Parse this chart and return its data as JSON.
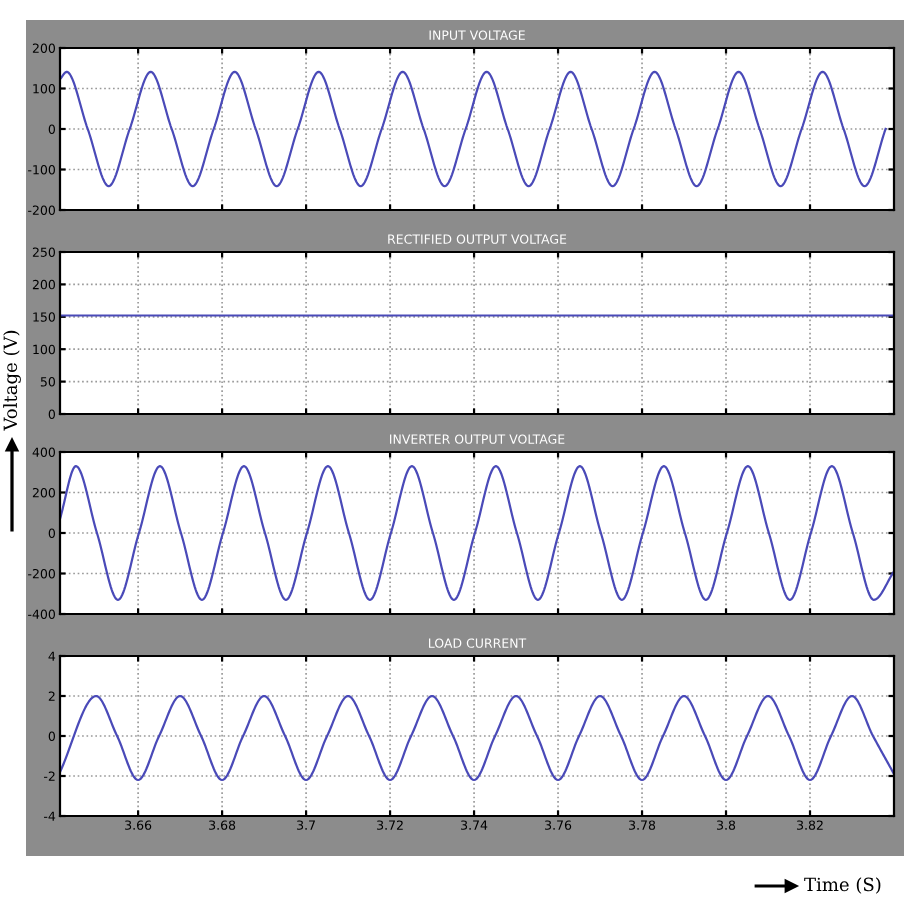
{
  "chart_data": [
    {
      "type": "line",
      "title": "INPUT VOLTAGE",
      "xlim": [
        3.6414,
        3.84
      ],
      "xticks": [
        3.66,
        3.68,
        3.7,
        3.72,
        3.74,
        3.76,
        3.78,
        3.8,
        3.82
      ],
      "ylim": [
        -200,
        200
      ],
      "yticks": [
        -200,
        -100,
        0,
        100,
        200
      ],
      "grid": true,
      "tick_labels": "y",
      "series": [
        {
          "color": "#4a4ab8",
          "x": [
            3.6414,
            3.643,
            3.648,
            3.653,
            3.658,
            3.663,
            3.668,
            3.673,
            3.678,
            3.683,
            3.688,
            3.693,
            3.698,
            3.703,
            3.708,
            3.713,
            3.718,
            3.723,
            3.728,
            3.733,
            3.738,
            3.743,
            3.748,
            3.753,
            3.758,
            3.763,
            3.768,
            3.773,
            3.778,
            3.783,
            3.788,
            3.793,
            3.798,
            3.803,
            3.808,
            3.813,
            3.818,
            3.823,
            3.828,
            3.833,
            3.838
          ],
          "values": [
            123,
            141,
            0,
            -141,
            0,
            141,
            0,
            -141,
            0,
            141,
            0,
            -141,
            0,
            141,
            0,
            -141,
            0,
            141,
            0,
            -141,
            0,
            141,
            0,
            -141,
            0,
            141,
            0,
            -141,
            0,
            141,
            0,
            -141,
            0,
            141,
            0,
            -141,
            0,
            141,
            0,
            -141,
            0
          ]
        }
      ]
    },
    {
      "type": "line",
      "title": "RECTIFIED OUTPUT VOLTAGE",
      "ylabel": "Voltage (V)",
      "xlim": [
        3.6414,
        3.84
      ],
      "xticks": [
        3.66,
        3.68,
        3.7,
        3.72,
        3.74,
        3.76,
        3.78,
        3.8,
        3.82
      ],
      "ylim": [
        0,
        250
      ],
      "yticks": [
        0,
        50,
        100,
        150,
        200,
        250
      ],
      "grid": true,
      "tick_labels": "y",
      "series": [
        {
          "color": "#4a4ab8",
          "x": [
            3.6414,
            3.84
          ],
          "values": [
            152,
            152
          ]
        }
      ]
    },
    {
      "type": "line",
      "title": "INVERTER OUTPUT VOLTAGE",
      "xlim": [
        3.6414,
        3.84
      ],
      "xticks": [
        3.66,
        3.68,
        3.7,
        3.72,
        3.74,
        3.76,
        3.78,
        3.8,
        3.82
      ],
      "ylim": [
        -400,
        400
      ],
      "yticks": [
        -400,
        -200,
        0,
        200,
        400
      ],
      "grid": true,
      "tick_labels": "y",
      "series": [
        {
          "color": "#4a4ab8",
          "x": [
            3.6414,
            3.6452,
            3.6502,
            3.6552,
            3.6602,
            3.6652,
            3.6702,
            3.6752,
            3.6802,
            3.6852,
            3.6902,
            3.6952,
            3.7002,
            3.7052,
            3.7102,
            3.7152,
            3.7202,
            3.7252,
            3.7302,
            3.7352,
            3.7402,
            3.7452,
            3.7502,
            3.7552,
            3.7602,
            3.7652,
            3.7702,
            3.7752,
            3.7802,
            3.7852,
            3.7902,
            3.7952,
            3.8002,
            3.8052,
            3.8102,
            3.8152,
            3.8202,
            3.8252,
            3.8302,
            3.8352,
            3.84
          ],
          "values": [
            70,
            330,
            0,
            -330,
            0,
            330,
            0,
            -330,
            0,
            330,
            0,
            -330,
            0,
            330,
            0,
            -330,
            0,
            330,
            0,
            -330,
            0,
            330,
            0,
            -330,
            0,
            330,
            0,
            -330,
            0,
            330,
            0,
            -330,
            0,
            330,
            0,
            -330,
            0,
            330,
            0,
            -330,
            -190
          ]
        }
      ]
    },
    {
      "type": "line",
      "title": "LOAD CURRENT",
      "xlabel": "Time (S)",
      "xlim": [
        3.6414,
        3.84
      ],
      "xticks": [
        3.66,
        3.68,
        3.7,
        3.72,
        3.74,
        3.76,
        3.78,
        3.8,
        3.82
      ],
      "ylim": [
        -4,
        4
      ],
      "yticks": [
        -4,
        -2,
        0,
        2,
        4
      ],
      "grid": true,
      "series": [
        {
          "color": "#4a4ab8",
          "x": [
            3.6414,
            3.65,
            3.655,
            3.66,
            3.665,
            3.67,
            3.675,
            3.68,
            3.685,
            3.69,
            3.695,
            3.7,
            3.705,
            3.71,
            3.715,
            3.72,
            3.725,
            3.73,
            3.735,
            3.74,
            3.745,
            3.75,
            3.755,
            3.76,
            3.765,
            3.77,
            3.775,
            3.78,
            3.785,
            3.79,
            3.795,
            3.8,
            3.805,
            3.81,
            3.815,
            3.82,
            3.825,
            3.83,
            3.835,
            3.84
          ],
          "values": [
            -1.8,
            2,
            0,
            -2.2,
            0,
            2,
            0,
            -2.2,
            0,
            2,
            0,
            -2.2,
            0,
            2,
            0,
            -2.2,
            0,
            2,
            0,
            -2.2,
            0,
            2,
            0,
            -2.2,
            0,
            2,
            0,
            -2.2,
            0,
            2,
            0,
            -2.2,
            0,
            2,
            0,
            -2.2,
            0,
            2,
            0,
            -1.9
          ]
        }
      ]
    }
  ]
}
